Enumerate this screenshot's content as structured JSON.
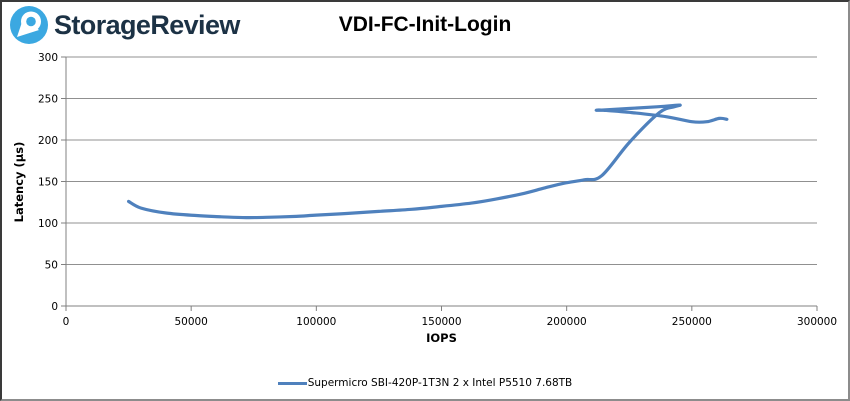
{
  "header": {
    "brand": "StorageReview",
    "logo_colors": {
      "circle": "#3BA8E1",
      "mark": "#ffffff",
      "text": "#1c3245"
    }
  },
  "chart_data": {
    "type": "line",
    "title": "VDI-FC-Init-Login",
    "xlabel": "IOPS",
    "ylabel": "Latency (µs)",
    "xlim": [
      0,
      300000
    ],
    "ylim": [
      0,
      300
    ],
    "x_ticks": [
      0,
      50000,
      100000,
      150000,
      200000,
      250000,
      300000
    ],
    "y_ticks": [
      0,
      50,
      100,
      150,
      200,
      250,
      300
    ],
    "grid": "horizontal",
    "grid_color": "#909090",
    "axis_color": "#808080",
    "legend_position": "bottom-center",
    "series": [
      {
        "name": "Supermicro SBI-420P-1T3N 2 x Intel P5510 7.68TB",
        "color": "#4F81BD",
        "points": [
          [
            25000,
            126
          ],
          [
            30000,
            118
          ],
          [
            40000,
            112
          ],
          [
            52000,
            109
          ],
          [
            62000,
            107.5
          ],
          [
            72000,
            106.5
          ],
          [
            82000,
            107
          ],
          [
            92000,
            108
          ],
          [
            100000,
            109.5
          ],
          [
            112000,
            111.5
          ],
          [
            125000,
            114
          ],
          [
            138000,
            116.5
          ],
          [
            150000,
            120
          ],
          [
            162000,
            124
          ],
          [
            172000,
            129
          ],
          [
            182000,
            135
          ],
          [
            191000,
            142
          ],
          [
            199000,
            148
          ],
          [
            207000,
            152
          ],
          [
            214000,
            157
          ],
          [
            225000,
            197
          ],
          [
            237000,
            233
          ],
          [
            243000,
            240
          ],
          [
            245000,
            242
          ],
          [
            236000,
            240
          ],
          [
            214000,
            236
          ],
          [
            214000,
            236
          ],
          [
            226000,
            233
          ],
          [
            240000,
            228
          ],
          [
            250000,
            222
          ],
          [
            256000,
            222
          ],
          [
            261000,
            226
          ],
          [
            264000,
            225
          ]
        ]
      }
    ]
  }
}
